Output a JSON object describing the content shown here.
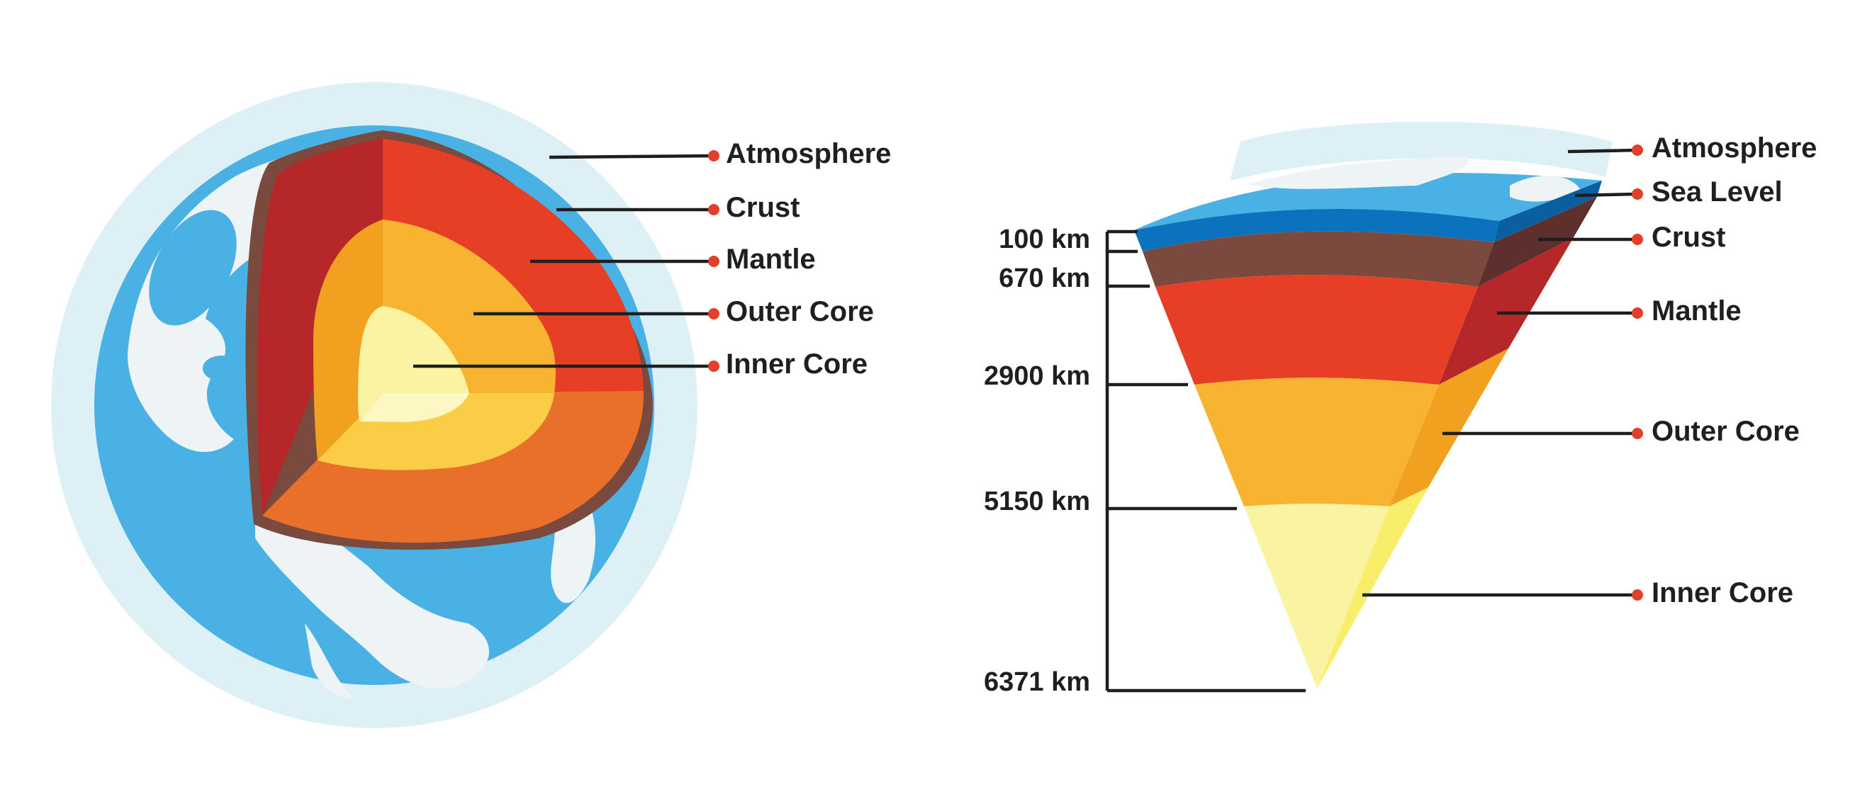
{
  "globe": {
    "labels": [
      {
        "id": "atmosphere",
        "text": "Atmosphere"
      },
      {
        "id": "crust",
        "text": "Crust"
      },
      {
        "id": "mantle",
        "text": "Mantle"
      },
      {
        "id": "outer-core",
        "text": "Outer Core"
      },
      {
        "id": "inner-core",
        "text": "Inner Core"
      }
    ]
  },
  "wedge": {
    "labels": [
      {
        "id": "atmosphere",
        "text": "Atmosphere"
      },
      {
        "id": "sea-level",
        "text": "Sea Level"
      },
      {
        "id": "crust",
        "text": "Crust"
      },
      {
        "id": "mantle",
        "text": "Mantle"
      },
      {
        "id": "outer-core",
        "text": "Outer Core"
      },
      {
        "id": "inner-core",
        "text": "Inner Core"
      }
    ],
    "depths": [
      "100 km",
      "670 km",
      "2900 km",
      "5150 km",
      "6371 km"
    ]
  },
  "colors": {
    "atmosphere": "#ddf0f6",
    "ocean": "#49b1e4",
    "land": "#eef3f6",
    "crust": "#7a4a3e",
    "mantle": "#e63f26",
    "mantle_side": "#b52728",
    "outer_core": "#f8b431",
    "outer_core_side": "#f2a01f",
    "inner_core": "#faf3a2",
    "inner_core_side": "#f8ee6a",
    "leader": "#1e1e1e",
    "dot": "#e0402a"
  }
}
